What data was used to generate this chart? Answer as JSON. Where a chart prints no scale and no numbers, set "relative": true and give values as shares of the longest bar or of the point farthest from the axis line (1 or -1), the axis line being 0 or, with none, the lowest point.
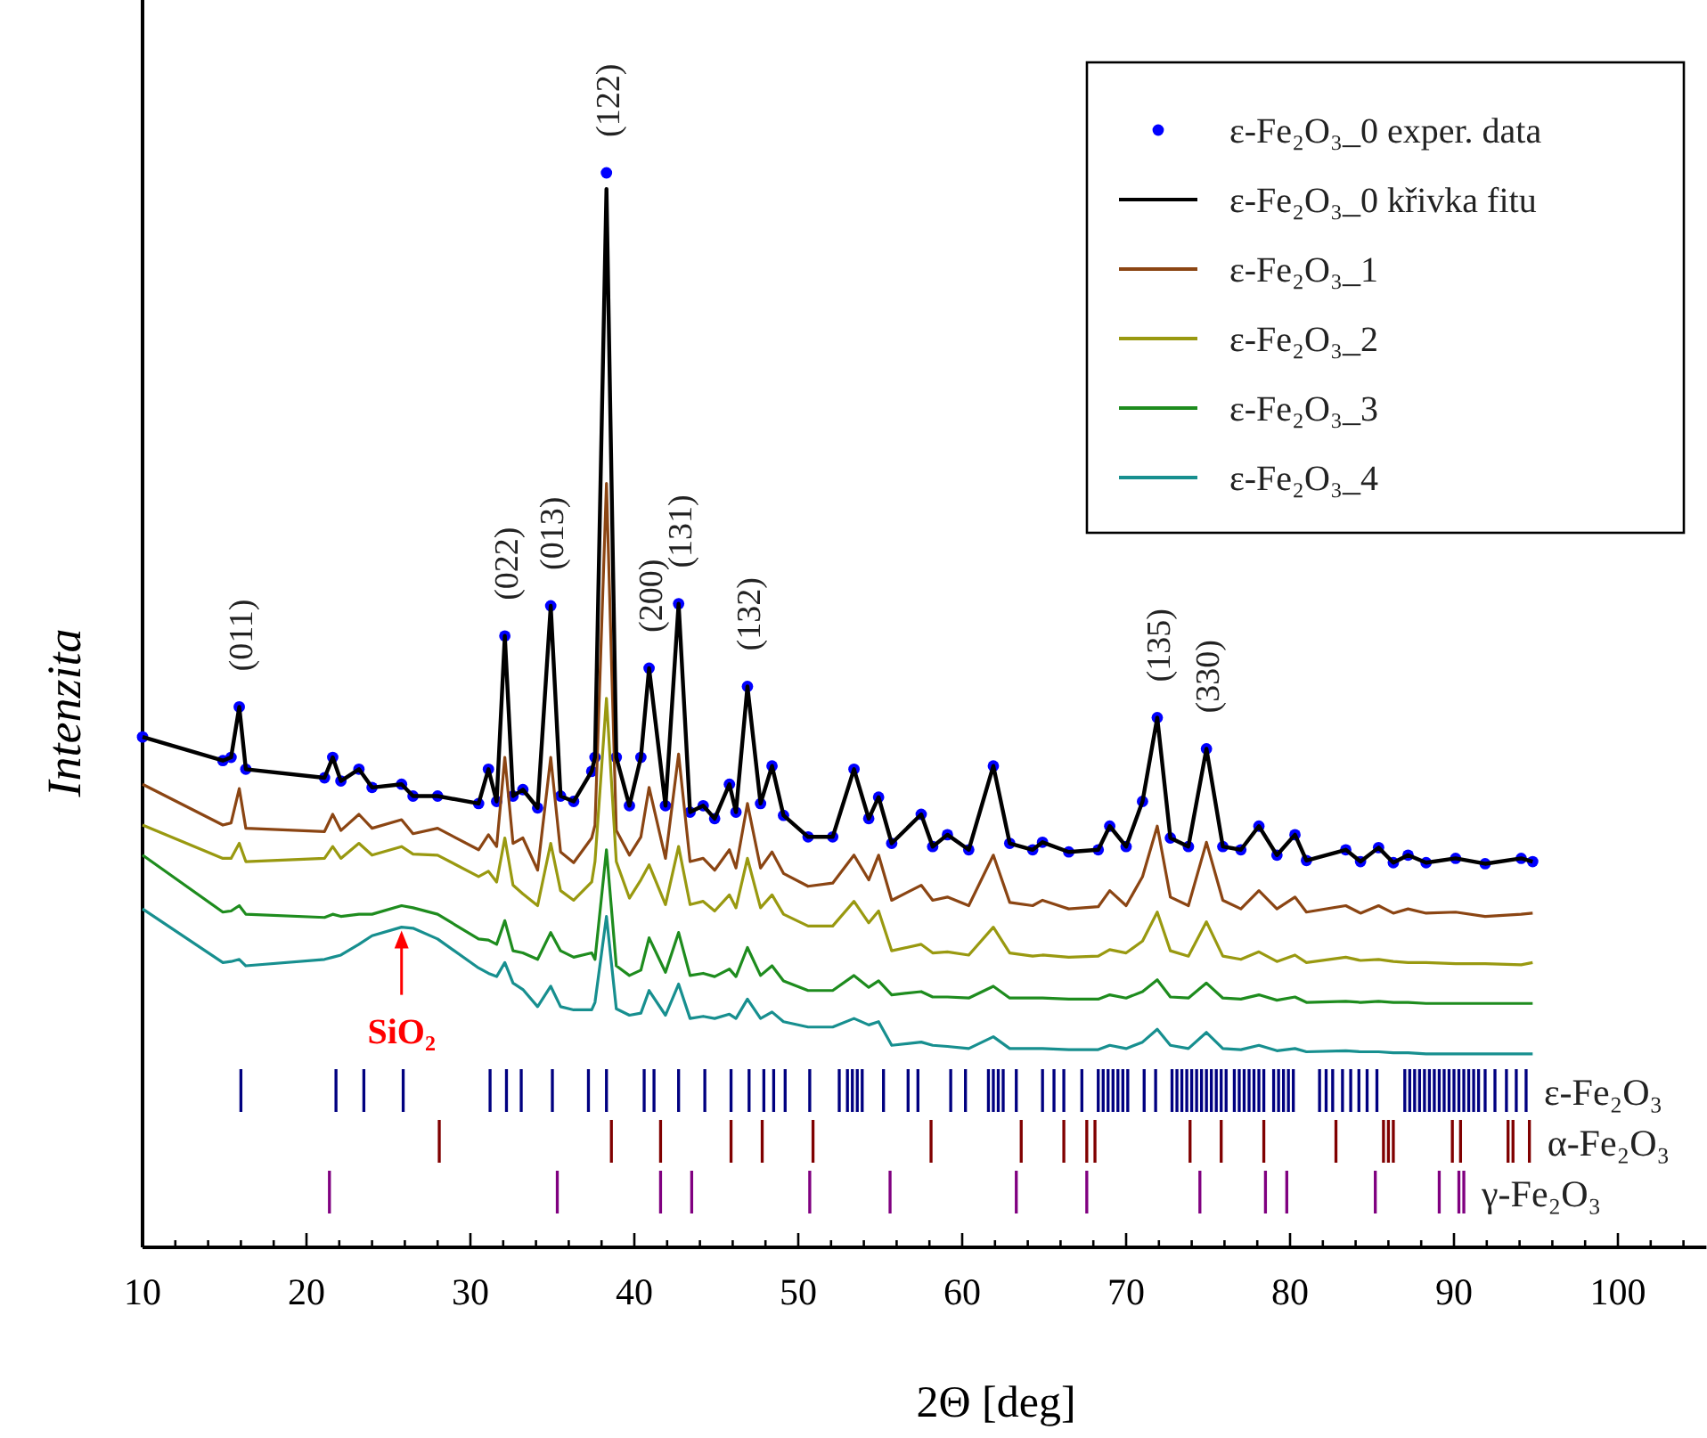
{
  "chart_data": [
    {
      "type": "line",
      "xlabel": "2Θ [deg]",
      "ylabel": "Intenzita",
      "relative": true,
      "legend": "top right",
      "grid": false,
      "xlim": [
        10,
        105.4
      ],
      "xticks": [
        10,
        {
          "value": 12,
          "label": null
        },
        {
          "value": 14,
          "label": null
        },
        {
          "value": 16,
          "label": null
        },
        {
          "value": 18,
          "label": null
        },
        20,
        {
          "value": 22,
          "label": null
        },
        {
          "value": 24,
          "label": null
        },
        {
          "value": 26,
          "label": null
        },
        {
          "value": 28,
          "label": null
        },
        30,
        {
          "value": 32,
          "label": null
        },
        {
          "value": 34,
          "label": null
        },
        {
          "value": 36,
          "label": null
        },
        {
          "value": 38,
          "label": null
        },
        40,
        {
          "value": 42,
          "label": null
        },
        {
          "value": 44,
          "label": null
        },
        {
          "value": 46,
          "label": null
        },
        {
          "value": 48,
          "label": null
        },
        50,
        {
          "value": 52,
          "label": null
        },
        {
          "value": 54,
          "label": null
        },
        {
          "value": 56,
          "label": null
        },
        {
          "value": 58,
          "label": null
        },
        60,
        {
          "value": 62,
          "label": null
        },
        {
          "value": 64,
          "label": null
        },
        {
          "value": 66,
          "label": null
        },
        {
          "value": 68,
          "label": null
        },
        70,
        {
          "value": 72,
          "label": null
        },
        {
          "value": 74,
          "label": null
        },
        {
          "value": 76,
          "label": null
        },
        {
          "value": 78,
          "label": null
        },
        80,
        {
          "value": 82,
          "label": null
        },
        {
          "value": 84,
          "label": null
        },
        {
          "value": 86,
          "label": null
        },
        {
          "value": 88,
          "label": null
        },
        90,
        {
          "value": 92,
          "label": null
        },
        {
          "value": 94,
          "label": null
        },
        {
          "value": 96,
          "label": null
        },
        {
          "value": 98,
          "label": null
        },
        100,
        {
          "value": 102,
          "label": null
        },
        {
          "value": 104,
          "label": null
        }
      ],
      "x": [
        10,
        14.9,
        15.4,
        15.9,
        16.3,
        21.1,
        21.6,
        22.1,
        23.2,
        24.0,
        25.8,
        26.5,
        28.0,
        30.5,
        31.1,
        31.6,
        32.1,
        32.6,
        33.2,
        34.1,
        34.9,
        35.5,
        36.3,
        37.4,
        37.6,
        38.3,
        38.9,
        39.7,
        40.4,
        40.9,
        41.9,
        42.7,
        43.4,
        44.2,
        44.9,
        45.8,
        46.2,
        46.9,
        47.7,
        48.4,
        49.1,
        50.6,
        52.1,
        53.4,
        54.3,
        54.9,
        55.7,
        57.5,
        58.2,
        59.1,
        60.4,
        61.9,
        62.9,
        64.3,
        64.9,
        66.5,
        68.3,
        69.0,
        70.0,
        71.0,
        71.9,
        72.7,
        73.8,
        74.9,
        75.9,
        77.0,
        78.1,
        79.2,
        80.3,
        81.0,
        83.4,
        84.3,
        85.4,
        86.3,
        87.2,
        88.3,
        90.1,
        91.9,
        94.1,
        94.8
      ],
      "series": [
        {
          "name": "ε-Fe₂O₃_0 exper. data",
          "type": "scatter",
          "marker": "circle",
          "color": "#0000ff",
          "values": [
            0.475,
            0.453,
            0.456,
            0.503,
            0.445,
            0.437,
            0.456,
            0.434,
            0.445,
            0.428,
            0.431,
            0.42,
            0.42,
            0.413,
            0.445,
            0.415,
            0.569,
            0.42,
            0.426,
            0.409,
            0.597,
            0.42,
            0.415,
            0.443,
            0.456,
            1.0,
            0.456,
            0.411,
            0.456,
            0.539,
            0.411,
            0.599,
            0.405,
            0.411,
            0.399,
            0.431,
            0.405,
            0.522,
            0.413,
            0.448,
            0.402,
            0.382,
            0.382,
            0.445,
            0.399,
            0.419,
            0.376,
            0.403,
            0.373,
            0.384,
            0.37,
            0.448,
            0.376,
            0.37,
            0.377,
            0.368,
            0.37,
            0.392,
            0.373,
            0.415,
            0.493,
            0.381,
            0.373,
            0.464,
            0.373,
            0.37,
            0.392,
            0.365,
            0.384,
            0.36,
            0.37,
            0.359,
            0.372,
            0.358,
            0.365,
            0.358,
            0.362,
            0.357,
            0.362,
            0.359
          ]
        },
        {
          "name": "ε-Fe₂O₃_0 křivka fitu",
          "color": "#000000",
          "values": [
            0.475,
            0.453,
            0.456,
            0.503,
            0.445,
            0.437,
            0.456,
            0.434,
            0.445,
            0.428,
            0.431,
            0.42,
            0.42,
            0.413,
            0.445,
            0.415,
            0.569,
            0.42,
            0.426,
            0.409,
            0.597,
            0.42,
            0.415,
            0.443,
            0.456,
            0.985,
            0.456,
            0.411,
            0.456,
            0.539,
            0.411,
            0.599,
            0.405,
            0.411,
            0.399,
            0.431,
            0.405,
            0.522,
            0.413,
            0.448,
            0.402,
            0.382,
            0.382,
            0.445,
            0.399,
            0.419,
            0.376,
            0.403,
            0.373,
            0.384,
            0.37,
            0.448,
            0.376,
            0.37,
            0.377,
            0.368,
            0.37,
            0.392,
            0.373,
            0.415,
            0.493,
            0.381,
            0.373,
            0.464,
            0.373,
            0.37,
            0.392,
            0.365,
            0.384,
            0.36,
            0.37,
            0.359,
            0.372,
            0.358,
            0.365,
            0.358,
            0.362,
            0.357,
            0.362,
            0.359
          ]
        },
        {
          "name": "ε-Fe₂O₃_1",
          "color": "#8b4513",
          "values": [
            0.431,
            0.393,
            0.395,
            0.427,
            0.39,
            0.387,
            0.403,
            0.388,
            0.403,
            0.39,
            0.398,
            0.385,
            0.39,
            0.37,
            0.384,
            0.373,
            0.456,
            0.376,
            0.381,
            0.351,
            0.456,
            0.368,
            0.358,
            0.381,
            0.393,
            0.711,
            0.388,
            0.365,
            0.382,
            0.428,
            0.362,
            0.459,
            0.359,
            0.362,
            0.351,
            0.37,
            0.353,
            0.413,
            0.353,
            0.368,
            0.348,
            0.336,
            0.339,
            0.365,
            0.342,
            0.365,
            0.323,
            0.337,
            0.323,
            0.326,
            0.318,
            0.365,
            0.321,
            0.318,
            0.323,
            0.315,
            0.317,
            0.332,
            0.318,
            0.345,
            0.392,
            0.326,
            0.318,
            0.377,
            0.323,
            0.315,
            0.332,
            0.315,
            0.326,
            0.312,
            0.318,
            0.311,
            0.318,
            0.311,
            0.315,
            0.311,
            0.312,
            0.308,
            0.31,
            0.311
          ]
        },
        {
          "name": "ε-Fe₂O₃_2",
          "color": "#999910",
          "values": [
            0.393,
            0.362,
            0.362,
            0.376,
            0.359,
            0.362,
            0.373,
            0.362,
            0.376,
            0.365,
            0.373,
            0.366,
            0.365,
            0.345,
            0.35,
            0.34,
            0.381,
            0.337,
            0.329,
            0.318,
            0.376,
            0.332,
            0.323,
            0.34,
            0.359,
            0.511,
            0.359,
            0.325,
            0.342,
            0.356,
            0.319,
            0.373,
            0.319,
            0.322,
            0.313,
            0.328,
            0.316,
            0.362,
            0.316,
            0.328,
            0.31,
            0.299,
            0.299,
            0.322,
            0.302,
            0.313,
            0.276,
            0.282,
            0.274,
            0.275,
            0.272,
            0.298,
            0.274,
            0.271,
            0.272,
            0.27,
            0.271,
            0.277,
            0.274,
            0.285,
            0.312,
            0.276,
            0.271,
            0.303,
            0.271,
            0.268,
            0.275,
            0.266,
            0.272,
            0.265,
            0.27,
            0.267,
            0.268,
            0.266,
            0.265,
            0.265,
            0.264,
            0.264,
            0.263,
            0.265
          ]
        },
        {
          "name": "ε-Fe₂O₃_3",
          "color": "#1e8c1e",
          "values": [
            0.365,
            0.312,
            0.313,
            0.318,
            0.31,
            0.307,
            0.31,
            0.308,
            0.31,
            0.31,
            0.318,
            0.316,
            0.31,
            0.287,
            0.286,
            0.282,
            0.304,
            0.276,
            0.274,
            0.268,
            0.293,
            0.276,
            0.27,
            0.274,
            0.268,
            0.37,
            0.262,
            0.253,
            0.258,
            0.288,
            0.256,
            0.293,
            0.253,
            0.255,
            0.252,
            0.259,
            0.252,
            0.279,
            0.253,
            0.262,
            0.248,
            0.239,
            0.239,
            0.253,
            0.242,
            0.248,
            0.235,
            0.238,
            0.233,
            0.233,
            0.232,
            0.243,
            0.232,
            0.232,
            0.232,
            0.231,
            0.231,
            0.235,
            0.232,
            0.238,
            0.249,
            0.233,
            0.232,
            0.246,
            0.232,
            0.231,
            0.235,
            0.23,
            0.233,
            0.228,
            0.229,
            0.228,
            0.229,
            0.228,
            0.228,
            0.227,
            0.227,
            0.227,
            0.227,
            0.227
          ]
        },
        {
          "name": "ε-Fe₂O₃_4",
          "color": "#178f8f",
          "values": [
            0.315,
            0.265,
            0.266,
            0.268,
            0.262,
            0.268,
            0.27,
            0.272,
            0.282,
            0.29,
            0.298,
            0.297,
            0.287,
            0.26,
            0.255,
            0.252,
            0.265,
            0.246,
            0.24,
            0.224,
            0.243,
            0.224,
            0.221,
            0.221,
            0.228,
            0.308,
            0.222,
            0.216,
            0.218,
            0.239,
            0.216,
            0.245,
            0.213,
            0.215,
            0.213,
            0.217,
            0.213,
            0.231,
            0.213,
            0.219,
            0.21,
            0.205,
            0.205,
            0.213,
            0.207,
            0.21,
            0.188,
            0.191,
            0.188,
            0.187,
            0.185,
            0.196,
            0.185,
            0.185,
            0.185,
            0.184,
            0.184,
            0.188,
            0.185,
            0.191,
            0.203,
            0.188,
            0.185,
            0.2,
            0.185,
            0.184,
            0.188,
            0.183,
            0.185,
            0.182,
            0.183,
            0.182,
            0.182,
            0.181,
            0.181,
            0.18,
            0.18,
            0.18,
            0.18,
            0.18
          ]
        }
      ],
      "annotations": [
        {
          "text": "(011)",
          "x": 15.9,
          "y": 0.503
        },
        {
          "text": "(022)",
          "x": 32.1,
          "y": 0.569
        },
        {
          "text": "(013)",
          "x": 34.9,
          "y": 0.597
        },
        {
          "text": "(122)",
          "x": 38.3,
          "y": 1.0
        },
        {
          "text": "(200)",
          "x": 40.9,
          "y": 0.539
        },
        {
          "text": "(131)",
          "x": 42.7,
          "y": 0.599
        },
        {
          "text": "(132)",
          "x": 46.9,
          "y": 0.522
        },
        {
          "text": "(135)",
          "x": 71.9,
          "y": 0.493
        },
        {
          "text": "(330)",
          "x": 74.9,
          "y": 0.464
        },
        {
          "text": "SiO₂",
          "x": 25.8,
          "y": 0.298
        }
      ]
    },
    {
      "type": "bar",
      "relative": true,
      "tick_labels": false,
      "xlim": [
        10,
        105.4
      ],
      "x": [
        16.0,
        21.8,
        23.5,
        25.9,
        31.2,
        32.2,
        33.1,
        35.0,
        37.2,
        38.3,
        40.6,
        41.2,
        42.7,
        44.3,
        45.9,
        47.0,
        47.9,
        48.5,
        49.2,
        50.7,
        52.5,
        53.0,
        53.3,
        53.6,
        53.9,
        55.2,
        56.7,
        57.3,
        59.3,
        60.2,
        61.6,
        61.9,
        62.2,
        62.5,
        63.3,
        64.9,
        65.6,
        66.2,
        67.3,
        68.3,
        68.6,
        68.9,
        69.2,
        69.5,
        69.8,
        70.1,
        71.1,
        71.8,
        72.8,
        73.1,
        73.4,
        73.7,
        74.0,
        74.3,
        74.6,
        74.9,
        75.2,
        75.5,
        75.8,
        76.1,
        76.6,
        76.9,
        77.2,
        77.5,
        77.8,
        78.1,
        78.4,
        79.0,
        79.3,
        79.6,
        79.9,
        80.2,
        81.8,
        82.2,
        82.6,
        83.2,
        83.7,
        84.2,
        84.7,
        85.3,
        87.0,
        87.3,
        87.6,
        87.9,
        88.2,
        88.5,
        88.8,
        89.1,
        89.4,
        89.7,
        90.0,
        90.3,
        90.6,
        90.9,
        91.2,
        91.5,
        91.9,
        92.5,
        93.2,
        93.8,
        94.4
      ],
      "series": [
        {
          "name": "ε-Fe₂O₃",
          "color": "#000080",
          "values": [
            1,
            1,
            1,
            1,
            1,
            1,
            1,
            1,
            1,
            1,
            1,
            1,
            1,
            1,
            1,
            1,
            1,
            1,
            1,
            1,
            1,
            1,
            1,
            1,
            1,
            1,
            1,
            1,
            1,
            1,
            1,
            1,
            1,
            1,
            1,
            1,
            1,
            1,
            1,
            1,
            1,
            1,
            1,
            1,
            1,
            1,
            1,
            1,
            1,
            1,
            1,
            1,
            1,
            1,
            1,
            1,
            1,
            1,
            1,
            1,
            1,
            1,
            1,
            1,
            1,
            1,
            1,
            1,
            1,
            1,
            1,
            1,
            1,
            1,
            1,
            1,
            1,
            1,
            1,
            1,
            1,
            1,
            1,
            1,
            1,
            1,
            1,
            1,
            1,
            1,
            1,
            1,
            1,
            1,
            1,
            1,
            1,
            1,
            1,
            1,
            1
          ]
        }
      ]
    },
    {
      "type": "bar",
      "relative": true,
      "tick_labels": false,
      "xlim": [
        10,
        105.4
      ],
      "x": [
        28.1,
        38.6,
        41.6,
        45.9,
        47.8,
        50.9,
        58.1,
        63.6,
        66.2,
        67.6,
        68.1,
        73.9,
        75.8,
        78.4,
        82.8,
        85.7,
        86.0,
        86.3,
        89.9,
        90.4,
        93.3,
        93.6,
        94.6
      ],
      "series": [
        {
          "name": "α-Fe₂O₃",
          "color": "#800000",
          "values": [
            1,
            1,
            1,
            1,
            1,
            1,
            1,
            1,
            1,
            1,
            1,
            1,
            1,
            1,
            1,
            1,
            1,
            1,
            1,
            1,
            1,
            1,
            1
          ]
        }
      ]
    },
    {
      "type": "bar",
      "relative": true,
      "tick_labels": false,
      "xlim": [
        10,
        105.4
      ],
      "x": [
        21.4,
        35.3,
        41.6,
        43.5,
        50.7,
        55.6,
        63.3,
        67.6,
        74.5,
        78.5,
        79.8,
        85.2,
        89.1,
        90.3,
        90.6
      ],
      "series": [
        {
          "name": "γ-Fe₂O₃",
          "color": "#800080",
          "values": [
            1,
            1,
            1,
            1,
            1,
            1,
            1,
            1,
            1,
            1,
            1,
            1,
            1,
            1,
            1
          ]
        }
      ]
    }
  ]
}
